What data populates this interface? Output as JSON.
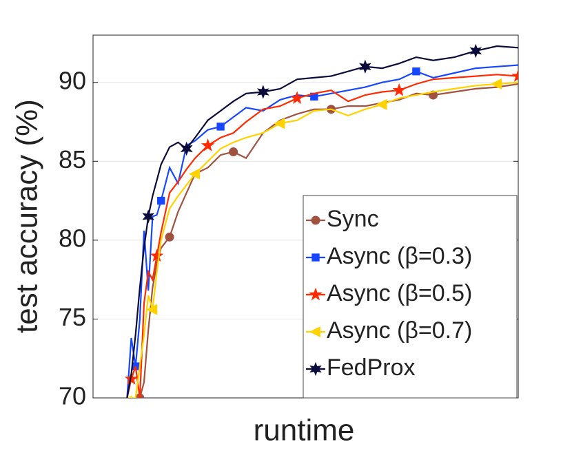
{
  "chart_data": {
    "type": "line",
    "x_label": "runtime",
    "y_label": "test accuracy (%)",
    "xlim": [
      0,
      100
    ],
    "ylim": [
      70,
      93
    ],
    "yticks": [
      70,
      75,
      80,
      85,
      90
    ],
    "grid": true,
    "legend": "lower right",
    "x": [
      8,
      9,
      10,
      11,
      12,
      13,
      14,
      15,
      16,
      18,
      20,
      22,
      24,
      27,
      30,
      33,
      36,
      40,
      44,
      48,
      52,
      56,
      60,
      64,
      68,
      72,
      76,
      80,
      85,
      90,
      95,
      100
    ],
    "series": [
      {
        "name": "Sync",
        "color": "#a0523f",
        "marker": "circle",
        "values": [
          69.5,
          69.8,
          70,
          70,
          71,
          74.3,
          77,
          78.5,
          79.5,
          80.2,
          81.8,
          83,
          84.2,
          84.6,
          85.4,
          85.6,
          85.2,
          86.8,
          87.6,
          88,
          88.3,
          88.3,
          88.5,
          88.5,
          88.7,
          88.9,
          89.3,
          89.2,
          89.4,
          89.6,
          89.7,
          89.9
        ]
      },
      {
        "name": "Async (β=0.3)",
        "color": "#1746ff",
        "marker": "square",
        "values": [
          70,
          73.8,
          72,
          75,
          80.6,
          76.8,
          81.5,
          81.6,
          82.5,
          84.6,
          83.6,
          86,
          86.3,
          87,
          87.2,
          87.8,
          88.4,
          88.2,
          88.9,
          89.2,
          89.1,
          89.3,
          89.5,
          89.7,
          90,
          90.2,
          90.7,
          90.3,
          90.6,
          90.9,
          91,
          91.1
        ]
      },
      {
        "name": "Async (β=0.5)",
        "color": "#ff2a00",
        "marker": "star",
        "values": [
          70,
          71.2,
          72,
          70,
          76,
          78,
          77.5,
          79,
          80.5,
          83,
          83.7,
          84.5,
          85.2,
          86,
          86.5,
          86.8,
          87.5,
          88.3,
          88.5,
          89,
          89.3,
          89.5,
          88.8,
          89.2,
          89.4,
          89.5,
          89.9,
          90.2,
          90.3,
          90.4,
          90.5,
          90.4
        ]
      },
      {
        "name": "Async (β=0.7)",
        "color": "#ffd200",
        "marker": "triangle-left",
        "values": [
          69.8,
          70,
          70,
          72,
          74,
          76.5,
          75.6,
          78,
          80,
          82,
          82.8,
          83.5,
          84.2,
          85,
          85.8,
          86.2,
          86.5,
          86.8,
          87.4,
          87.6,
          88.2,
          88.3,
          87.9,
          88.3,
          88.6,
          89,
          89.2,
          89.4,
          89.6,
          89.8,
          89.9,
          90
        ]
      },
      {
        "name": "FedProx",
        "color": "#0b0b3b",
        "marker": "hexstar",
        "values": [
          70,
          71.5,
          74,
          77,
          79.5,
          81.5,
          82.8,
          83.8,
          84.8,
          85.9,
          86.2,
          85.8,
          86.5,
          87.6,
          88.2,
          88.8,
          89.3,
          89.4,
          89.6,
          90.2,
          90.3,
          90.4,
          90.7,
          91,
          90.9,
          91.2,
          91.6,
          91.4,
          91.6,
          92,
          92.3,
          92.2
        ]
      }
    ]
  }
}
